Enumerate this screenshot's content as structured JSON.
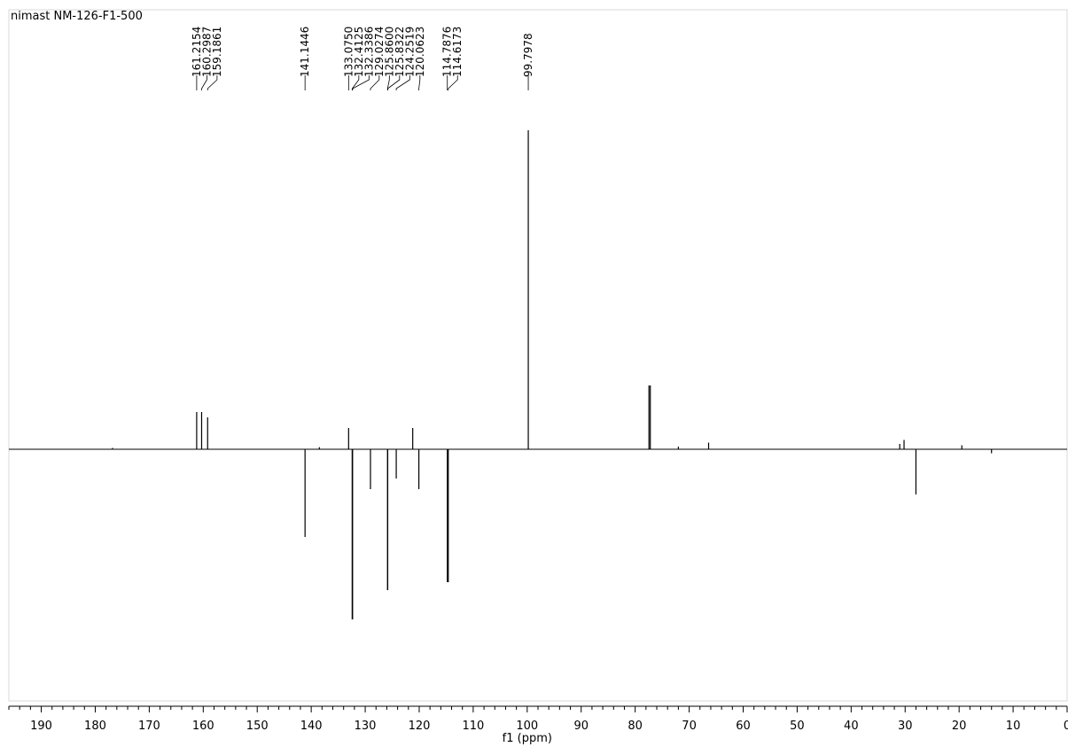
{
  "chart_data": {
    "type": "line",
    "title": "nimast NM-126-F1-500",
    "xlabel": "f1 (ppm)",
    "ylabel": "",
    "x_reversed": true,
    "xlim": [
      196,
      0
    ],
    "ylim": [
      -1.6,
      1.25
    ],
    "grid": false,
    "x_ticks": [
      190,
      180,
      170,
      160,
      150,
      140,
      130,
      120,
      110,
      100,
      90,
      80,
      70,
      60,
      50,
      40,
      30,
      20,
      10,
      0
    ],
    "peak_labels": [
      "161.2154",
      "160.2987",
      "159.1861",
      "141.1446",
      "133.0750",
      "132.4125",
      "132.3386",
      "129.0274",
      "125.8600",
      "125.8322",
      "124.2519",
      "120.0623",
      "114.7876",
      "114.6173",
      "99.7978"
    ],
    "peak_label_values": [
      161.2154,
      160.2987,
      159.1861,
      141.1446,
      133.075,
      132.4125,
      132.3386,
      129.0274,
      125.86,
      125.8322,
      124.2519,
      120.0623,
      114.7876,
      114.6173,
      99.7978
    ],
    "peaks": [
      {
        "ppm": 161.2154,
        "intensity": 0.14
      },
      {
        "ppm": 160.2987,
        "intensity": 0.14
      },
      {
        "ppm": 159.1861,
        "intensity": 0.12
      },
      {
        "ppm": 141.1446,
        "intensity": -0.33
      },
      {
        "ppm": 133.075,
        "intensity": 0.08
      },
      {
        "ppm": 132.4125,
        "intensity": -0.64
      },
      {
        "ppm": 132.3386,
        "intensity": -0.64
      },
      {
        "ppm": 129.0274,
        "intensity": -0.15
      },
      {
        "ppm": 125.86,
        "intensity": -0.53
      },
      {
        "ppm": 125.8322,
        "intensity": -0.53
      },
      {
        "ppm": 124.2519,
        "intensity": -0.11
      },
      {
        "ppm": 121.2,
        "intensity": 0.08
      },
      {
        "ppm": 120.0623,
        "intensity": -0.15
      },
      {
        "ppm": 114.7876,
        "intensity": -0.5
      },
      {
        "ppm": 114.6173,
        "intensity": -0.5
      },
      {
        "ppm": 99.7978,
        "intensity": 1.2
      },
      {
        "ppm": 77.45,
        "intensity": 0.24
      },
      {
        "ppm": 77.2,
        "intensity": 0.24
      },
      {
        "ppm": 72.0,
        "intensity": 0.01
      },
      {
        "ppm": 66.4,
        "intensity": 0.025
      },
      {
        "ppm": 31.0,
        "intensity": 0.02
      },
      {
        "ppm": 30.2,
        "intensity": 0.035
      },
      {
        "ppm": 28.0,
        "intensity": -0.17
      },
      {
        "ppm": 19.5,
        "intensity": 0.015
      },
      {
        "ppm": 14.0,
        "intensity": -0.015
      },
      {
        "ppm": 176.8,
        "intensity": 0.005
      },
      {
        "ppm": 138.5,
        "intensity": 0.008
      }
    ]
  }
}
